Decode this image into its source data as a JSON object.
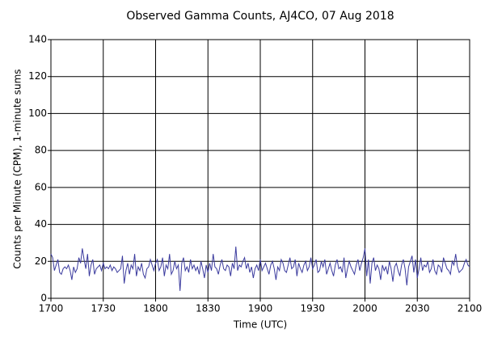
{
  "chart_data": {
    "type": "line",
    "title": "Observed Gamma Counts, AJ4CO, 07 Aug 2018",
    "x_label": "Time (UTC)",
    "y_label": "Counts per Minute (CPM), 1-minute sums",
    "x": [
      "1700",
      "1701",
      "1702",
      "1703",
      "1704",
      "1705",
      "1706",
      "1707",
      "1708",
      "1709",
      "1710",
      "1711",
      "1712",
      "1713",
      "1714",
      "1715",
      "1716",
      "1717",
      "1718",
      "1719",
      "1720",
      "1721",
      "1722",
      "1723",
      "1724",
      "1725",
      "1726",
      "1727",
      "1728",
      "1729",
      "1730",
      "1731",
      "1732",
      "1733",
      "1734",
      "1735",
      "1736",
      "1737",
      "1738",
      "1739",
      "1740",
      "1741",
      "1742",
      "1743",
      "1744",
      "1745",
      "1746",
      "1747",
      "1748",
      "1749",
      "1750",
      "1751",
      "1752",
      "1753",
      "1754",
      "1755",
      "1756",
      "1757",
      "1758",
      "1759",
      "1800",
      "1801",
      "1802",
      "1803",
      "1804",
      "1805",
      "1806",
      "1807",
      "1808",
      "1809",
      "1810",
      "1811",
      "1812",
      "1813",
      "1814",
      "1815",
      "1816",
      "1817",
      "1818",
      "1819",
      "1820",
      "1821",
      "1822",
      "1823",
      "1824",
      "1825",
      "1826",
      "1827",
      "1828",
      "1829",
      "1830",
      "1831",
      "1832",
      "1833",
      "1834",
      "1835",
      "1836",
      "1837",
      "1838",
      "1839",
      "1840",
      "1841",
      "1842",
      "1843",
      "1844",
      "1845",
      "1846",
      "1847",
      "1848",
      "1849",
      "1850",
      "1851",
      "1852",
      "1853",
      "1854",
      "1855",
      "1856",
      "1857",
      "1858",
      "1859",
      "1900",
      "1901",
      "1902",
      "1903",
      "1904",
      "1905",
      "1906",
      "1907",
      "1908",
      "1909",
      "1910",
      "1911",
      "1912",
      "1913",
      "1914",
      "1915",
      "1916",
      "1917",
      "1918",
      "1919",
      "1920",
      "1921",
      "1922",
      "1923",
      "1924",
      "1925",
      "1926",
      "1927",
      "1928",
      "1929",
      "1930",
      "1931",
      "1932",
      "1933",
      "1934",
      "1935",
      "1936",
      "1937",
      "1938",
      "1939",
      "1940",
      "1941",
      "1942",
      "1943",
      "1944",
      "1945",
      "1946",
      "1947",
      "1948",
      "1949",
      "1950",
      "1951",
      "1952",
      "1953",
      "1954",
      "1955",
      "1956",
      "1957",
      "1958",
      "1959",
      "2000",
      "2001",
      "2002",
      "2003",
      "2004",
      "2005",
      "2006",
      "2007",
      "2008",
      "2009",
      "2010",
      "2011",
      "2012",
      "2013",
      "2014",
      "2015",
      "2016",
      "2017",
      "2018",
      "2019",
      "2020",
      "2021",
      "2022",
      "2023",
      "2024",
      "2025",
      "2026",
      "2027",
      "2028",
      "2029",
      "2030",
      "2031",
      "2032",
      "2033",
      "2034",
      "2035",
      "2036",
      "2037",
      "2038",
      "2039",
      "2040",
      "2041",
      "2042",
      "2043",
      "2044",
      "2045",
      "2046",
      "2047",
      "2048",
      "2049",
      "2050",
      "2051",
      "2052",
      "2053",
      "2054",
      "2055",
      "2056",
      "2057",
      "2058",
      "2059",
      "2100"
    ],
    "series": [
      {
        "color": "#3b3b9e",
        "values": [
          24,
          22,
          15,
          18,
          21,
          14,
          13,
          16,
          17,
          16,
          18,
          15,
          10,
          17,
          14,
          16,
          22,
          19,
          27,
          21,
          16,
          24,
          12,
          18,
          21,
          13,
          16,
          17,
          18,
          15,
          19,
          16,
          17,
          16,
          18,
          15,
          17,
          16,
          14,
          15,
          16,
          23,
          8,
          15,
          19,
          13,
          18,
          16,
          24,
          12,
          17,
          15,
          19,
          13,
          11,
          16,
          17,
          21,
          18,
          15,
          19,
          21,
          15,
          17,
          22,
          12,
          18,
          16,
          24,
          13,
          15,
          20,
          16,
          18,
          4,
          19,
          22,
          15,
          17,
          14,
          21,
          16,
          18,
          15,
          17,
          13,
          20,
          16,
          11,
          18,
          14,
          19,
          15,
          24,
          17,
          16,
          13,
          18,
          21,
          16,
          15,
          18,
          17,
          12,
          19,
          16,
          28,
          15,
          18,
          17,
          20,
          22,
          16,
          19,
          14,
          17,
          11,
          16,
          18,
          15,
          21,
          15,
          17,
          19,
          16,
          13,
          18,
          20,
          16,
          10,
          17,
          15,
          21,
          19,
          15,
          14,
          18,
          22,
          16,
          17,
          21,
          12,
          19,
          16,
          14,
          18,
          20,
          15,
          17,
          22,
          16,
          18,
          21,
          14,
          15,
          20,
          17,
          21,
          13,
          16,
          19,
          15,
          12,
          18,
          21,
          16,
          17,
          14,
          22,
          11,
          16,
          20,
          17,
          15,
          13,
          18,
          21,
          15,
          19,
          22,
          27,
          12,
          21,
          8,
          19,
          22,
          15,
          18,
          16,
          10,
          18,
          15,
          17,
          13,
          20,
          16,
          9,
          17,
          19,
          15,
          12,
          18,
          21,
          16,
          7,
          17,
          20,
          23,
          14,
          21,
          11,
          16,
          22,
          15,
          18,
          17,
          20,
          14,
          16,
          21,
          15,
          13,
          18,
          17,
          14,
          22,
          19,
          16,
          15,
          13,
          20,
          18,
          24,
          17,
          14,
          15,
          16,
          19,
          21,
          18,
          17
        ]
      }
    ],
    "xtick_every": 30,
    "ylim": [
      0,
      140
    ],
    "yticks": [
      0,
      20,
      40,
      60,
      80,
      100,
      120,
      140
    ],
    "grid": true
  }
}
